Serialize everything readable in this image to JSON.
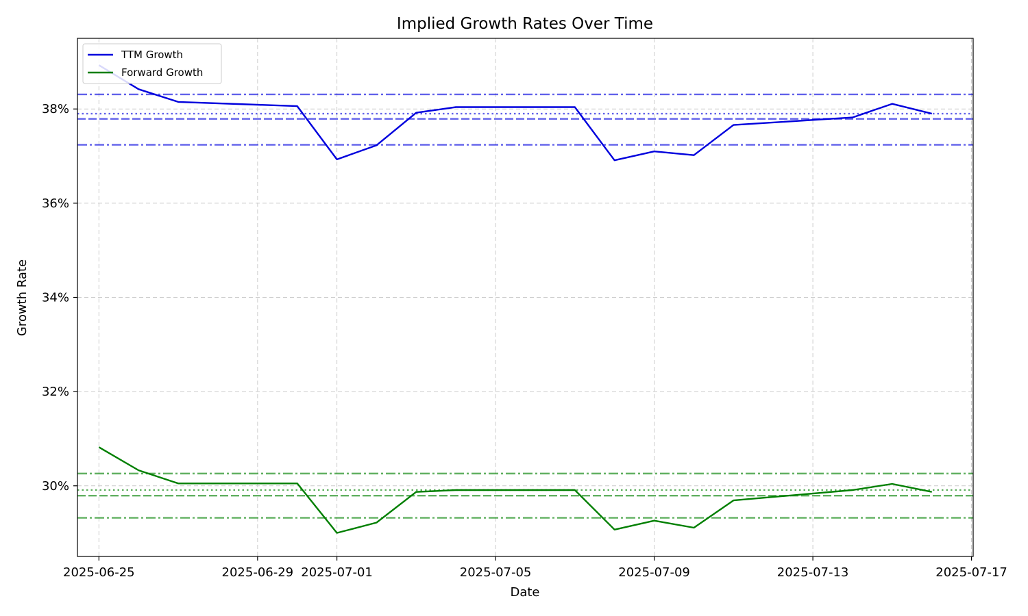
{
  "chart_data": {
    "type": "line",
    "title": "Implied Growth Rates Over Time",
    "xlabel": "Date",
    "ylabel": "Growth Rate",
    "xlim": [
      "2025-06-24T11:00",
      "2025-07-17T01:00"
    ],
    "ylim": [
      28.5,
      39.5
    ],
    "x_ticks": [
      "2025-06-25",
      "2025-06-29",
      "2025-07-01",
      "2025-07-05",
      "2025-07-09",
      "2025-07-13",
      "2025-07-17"
    ],
    "y_ticks": [
      30,
      32,
      34,
      36,
      38
    ],
    "y_tick_labels": [
      "30%",
      "32%",
      "34%",
      "36%",
      "38%"
    ],
    "grid": true,
    "legend_position": "top-left",
    "x": [
      "2025-06-25",
      "2025-06-26",
      "2025-06-27",
      "2025-06-30",
      "2025-07-01",
      "2025-07-02",
      "2025-07-03",
      "2025-07-04",
      "2025-07-07",
      "2025-07-08",
      "2025-07-09",
      "2025-07-10",
      "2025-07-11",
      "2025-07-14",
      "2025-07-15",
      "2025-07-16"
    ],
    "series": [
      {
        "name": "TTM Growth",
        "color": "#0000dd",
        "values": [
          38.93,
          38.42,
          38.15,
          38.06,
          36.93,
          37.23,
          37.92,
          38.04,
          38.04,
          36.91,
          37.1,
          37.02,
          37.66,
          37.82,
          38.11,
          37.9
        ],
        "reference_lines": [
          {
            "value": 38.31,
            "style": "dashdot"
          },
          {
            "value": 37.9,
            "style": "dotted"
          },
          {
            "value": 37.79,
            "style": "dashed"
          },
          {
            "value": 37.24,
            "style": "dashdot"
          }
        ]
      },
      {
        "name": "Forward Growth",
        "color": "#007f00",
        "values": [
          30.82,
          30.33,
          30.05,
          30.05,
          29.0,
          29.22,
          29.87,
          29.91,
          29.91,
          29.07,
          29.26,
          29.11,
          29.69,
          29.91,
          30.04,
          29.87
        ],
        "reference_lines": [
          {
            "value": 30.26,
            "style": "dashdot"
          },
          {
            "value": 29.91,
            "style": "dotted"
          },
          {
            "value": 29.79,
            "style": "dashed"
          },
          {
            "value": 29.32,
            "style": "dashdot"
          }
        ]
      }
    ]
  }
}
